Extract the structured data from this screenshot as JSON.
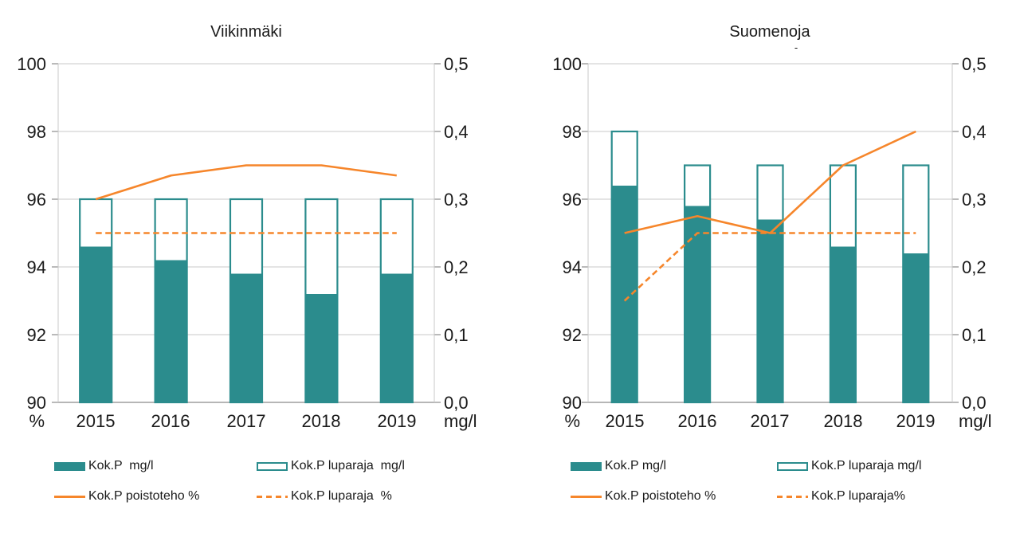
{
  "page": {
    "background": "#ffffff"
  },
  "colors": {
    "teal": "#2b8c8d",
    "orange": "#f6862b",
    "grid": "#c9c9c9",
    "axis": "#9d9d9d",
    "text": "#1a1a1a"
  },
  "chart_data": [
    {
      "type": "bar",
      "subtype": "combo_bar_line_dual_axis",
      "title": "Viikinmäki",
      "categories": [
        "2015",
        "2016",
        "2017",
        "2018",
        "2019"
      ],
      "left_axis": {
        "unit": "%",
        "min": 90,
        "max": 100,
        "tick_labels": [
          "100",
          "98",
          "96",
          "94",
          "92",
          "90"
        ]
      },
      "right_axis": {
        "unit": "mg/l",
        "min": 0.0,
        "max": 0.5,
        "tick_labels": [
          "0,5",
          "0,4",
          "0,3",
          "0,2",
          "0,1",
          "0,0"
        ]
      },
      "grid": true,
      "legend_position": "bottom",
      "series": [
        {
          "name": "Kok.P  mg/l",
          "kind": "bar_filled",
          "axis": "right",
          "values": [
            0.23,
            0.21,
            0.19,
            0.16,
            0.19
          ]
        },
        {
          "name": "Kok.P luparaja  mg/l",
          "kind": "bar_outline",
          "axis": "right",
          "values": [
            0.3,
            0.3,
            0.3,
            0.3,
            0.3
          ]
        },
        {
          "name": "Kok.P poistoteho %",
          "kind": "line_solid",
          "axis": "left",
          "values": [
            96.0,
            96.7,
            97.0,
            97.0,
            96.7
          ]
        },
        {
          "name": "Kok.P luparaja  %",
          "kind": "line_dashed",
          "axis": "left",
          "values": [
            95,
            95,
            95,
            95,
            95
          ]
        }
      ]
    },
    {
      "type": "bar",
      "subtype": "combo_bar_line_dual_axis",
      "title": "Suomenoja",
      "title_mark": "-",
      "categories": [
        "2015",
        "2016",
        "2017",
        "2018",
        "2019"
      ],
      "left_axis": {
        "unit": "%",
        "min": 90,
        "max": 100,
        "tick_labels": [
          "100",
          "98",
          "96",
          "94",
          "92",
          "90"
        ]
      },
      "right_axis": {
        "unit": "mg/l",
        "min": 0.0,
        "max": 0.5,
        "tick_labels": [
          "0,5",
          "0,4",
          "0,3",
          "0,2",
          "0,1",
          "0,0"
        ]
      },
      "grid": true,
      "legend_position": "bottom",
      "series": [
        {
          "name": "Kok.P mg/l",
          "kind": "bar_filled",
          "axis": "right",
          "values": [
            0.32,
            0.29,
            0.27,
            0.23,
            0.22
          ]
        },
        {
          "name": "Kok.P luparaja mg/l",
          "kind": "bar_outline",
          "axis": "right",
          "values": [
            0.4,
            0.35,
            0.35,
            0.35,
            0.35
          ]
        },
        {
          "name": "Kok.P poistoteho %",
          "kind": "line_solid",
          "axis": "left",
          "values": [
            95.0,
            95.5,
            95.0,
            97.0,
            98.0
          ]
        },
        {
          "name": "Kok.P luparaja%",
          "kind": "line_dashed",
          "axis": "left",
          "values": [
            93,
            95,
            95,
            95,
            95
          ]
        }
      ]
    }
  ]
}
